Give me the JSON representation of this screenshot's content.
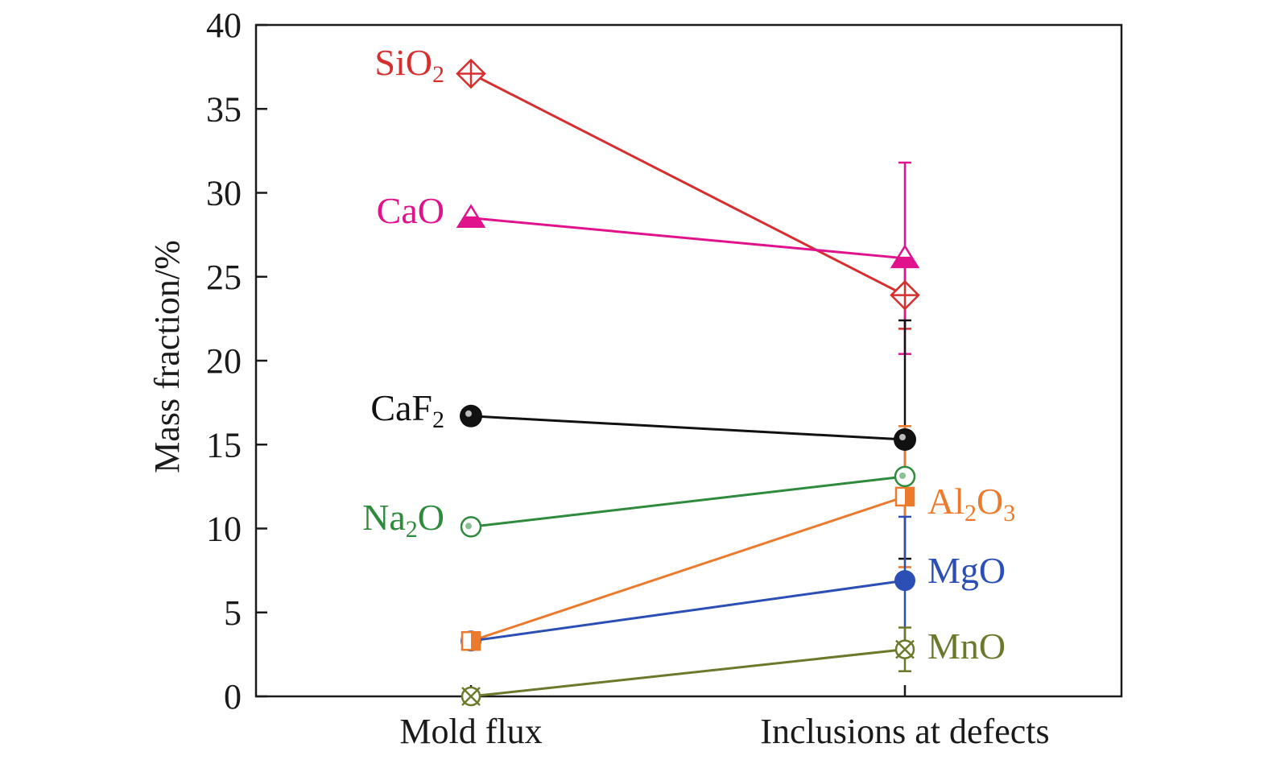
{
  "chart_data": {
    "type": "line",
    "title": "",
    "xlabel": "",
    "ylabel": "Mass fraction/%",
    "categories": [
      "Mold flux",
      "Inclusions at defects"
    ],
    "ylim": [
      0,
      40
    ],
    "yticks": [
      0,
      5,
      10,
      15,
      20,
      25,
      30,
      35,
      40
    ],
    "grid": false,
    "legend": "inline labels",
    "series": [
      {
        "name": "SiO2",
        "label_main": "SiO",
        "label_sub": "2",
        "label_tail": "",
        "label_side": "left",
        "color": "#d62f2f",
        "marker": "diamond-cross-open",
        "values": [
          37.1,
          23.9
        ],
        "error": [
          null,
          2.0
        ]
      },
      {
        "name": "CaO",
        "label_main": "CaO",
        "label_sub": "",
        "label_tail": "",
        "label_side": "left",
        "color": "#e0128c",
        "marker": "triangle-half",
        "values": [
          28.5,
          26.1
        ],
        "error": [
          null,
          5.7
        ]
      },
      {
        "name": "CaF2",
        "label_main": "CaF",
        "label_sub": "2",
        "label_tail": "",
        "label_side": "left",
        "color": "#111111",
        "marker": "sphere",
        "values": [
          16.7,
          15.3
        ],
        "error": [
          null,
          7.1
        ]
      },
      {
        "name": "Na2O",
        "label_main": "Na",
        "label_sub": "2",
        "label_tail": "O",
        "label_side": "left",
        "color": "#2e8b3d",
        "marker": "circle-open",
        "values": [
          10.1,
          13.1
        ],
        "error": [
          null,
          null
        ]
      },
      {
        "name": "Al2O3",
        "label_main": "Al",
        "label_sub": "2",
        "label_tail": "O",
        "label_sub2": "3",
        "label_side": "right",
        "color": "#ec7a2c",
        "marker": "square-half",
        "values": [
          3.3,
          11.9
        ],
        "error": [
          null,
          4.2
        ]
      },
      {
        "name": "MgO",
        "label_main": "MgO",
        "label_sub": "",
        "label_tail": "",
        "label_side": "right",
        "color": "#2c4fb5",
        "marker": "circle-filled",
        "values": [
          3.3,
          6.9
        ],
        "error": [
          null,
          3.8
        ]
      },
      {
        "name": "MnO",
        "label_main": "MnO",
        "label_sub": "",
        "label_tail": "",
        "label_side": "right",
        "color": "#6b7a2a",
        "marker": "circle-x",
        "values": [
          0.0,
          2.8
        ],
        "error": [
          null,
          1.3
        ]
      }
    ]
  }
}
